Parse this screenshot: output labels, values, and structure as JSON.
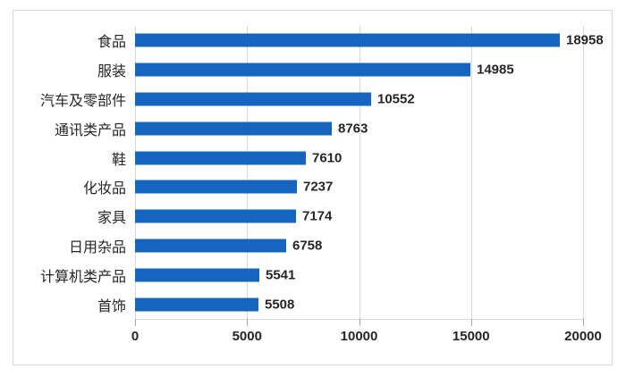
{
  "chart_data": {
    "type": "bar",
    "orientation": "horizontal",
    "title": "",
    "xlabel": "",
    "ylabel": "",
    "categories": [
      "食品",
      "服装",
      "汽车及零部件",
      "通讯类产品",
      "鞋",
      "化妆品",
      "家具",
      "日用杂品",
      "计算机类产品",
      "首饰"
    ],
    "values": [
      18958,
      14985,
      10552,
      8763,
      7610,
      7237,
      7174,
      6758,
      5541,
      5508
    ],
    "data_labels": [
      "18958",
      "14985",
      "10552",
      "8763",
      "7610",
      "7237",
      "7174",
      "6758",
      "5541",
      "5508"
    ],
    "xlim": [
      0,
      20000
    ],
    "x_ticks": [
      0,
      5000,
      10000,
      15000,
      20000
    ],
    "x_tick_labels": [
      "0",
      "5000",
      "10000",
      "15000",
      "20000"
    ],
    "grid": true,
    "legend": false,
    "colors": {
      "bar": "#1565c0",
      "gridline": "#d9d9d9",
      "tick": "#a6a6a6",
      "axis_line": "#d9d9d9",
      "text": "#262626",
      "frame_border": "#d9d9d9",
      "background": "#ffffff"
    }
  }
}
